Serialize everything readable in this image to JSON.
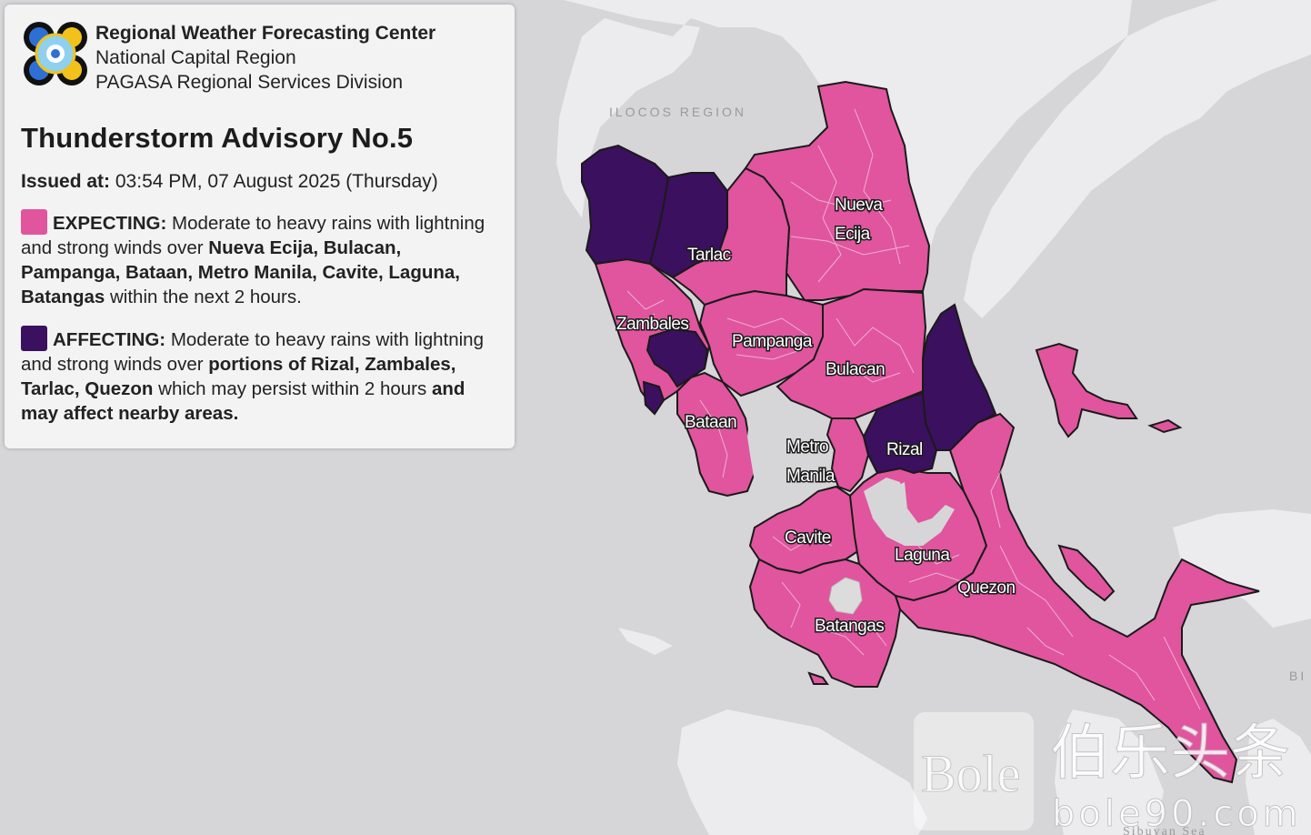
{
  "header": {
    "org_line1": "Regional Weather Forecasting Center",
    "org_line2": "National Capital Region",
    "org_line3": "PAGASA Regional Services Division"
  },
  "advisory": {
    "title": "Thunderstorm Advisory No.5",
    "issued_label": "Issued at:",
    "issued_value": "03:54 PM, 07 August 2025 (Thursday)"
  },
  "legend": {
    "expecting": {
      "color": "#e0559e",
      "label": "EXPECTING:",
      "text_a": "Moderate to heavy rains with lightning and strong winds over",
      "areas": "Nueva Ecija, Bulacan, Pampanga, Bataan, Metro Manila, Cavite, Laguna, Batangas",
      "text_b": "within the next 2 hours."
    },
    "affecting": {
      "color": "#3b105e",
      "label": "AFFECTING:",
      "text_a": "Moderate to heavy rains with lightning and strong winds over",
      "areas": "portions of Rizal, Zambales, Tarlac, Quezon",
      "text_b": "which may persist within 2 hours",
      "text_c": "and may affect nearby areas."
    }
  },
  "map": {
    "provinces": [
      "Nueva Ecija",
      "Tarlac",
      "Zambales",
      "Pampanga",
      "Bulacan",
      "Bataan",
      "Metro Manila",
      "Rizal",
      "Cavite",
      "Laguna",
      "Quezon",
      "Batangas"
    ],
    "background_labels": [
      "ILOCOS REGION",
      "BI",
      "Sibuyan Sea"
    ]
  },
  "watermark": {
    "brand": "Bole",
    "cjk": "伯乐头条",
    "domain": "bole90.com"
  }
}
